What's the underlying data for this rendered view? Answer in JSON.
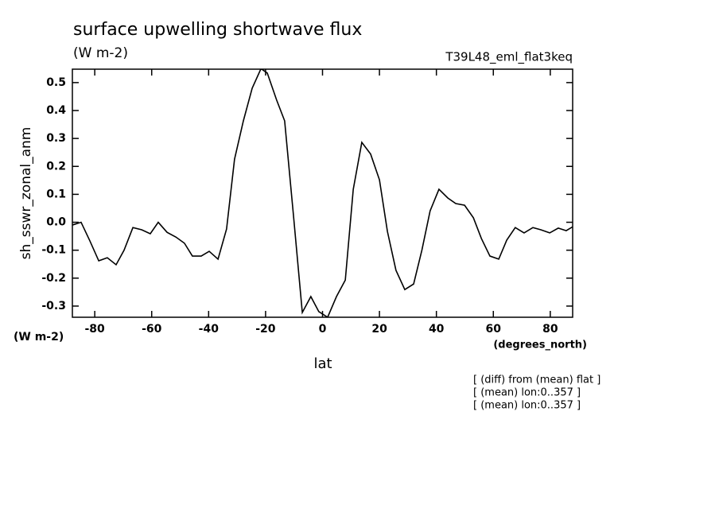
{
  "chart_data": {
    "type": "line",
    "title": "surface upwelling shortwave flux",
    "subtitle": "(W m-2)",
    "run_label": "T39L48_eml_flat3keq",
    "y_label": "sh_sswr_zonal_anm",
    "y_units": "(W m-2)",
    "x_label": "lat",
    "x_units": "(degrees_north)",
    "notes": [
      "[ (diff) from (mean) flat ]",
      "[ (mean) lon:0..357 ]",
      "[ (mean) lon:0..357 ]"
    ],
    "color": "#000000",
    "x": [
      -87.9,
      -84.8,
      -81.7,
      -78.6,
      -75.6,
      -72.5,
      -69.7,
      -66.6,
      -63.5,
      -60.5,
      -57.7,
      -54.6,
      -51.5,
      -48.5,
      -45.7,
      -42.6,
      -39.8,
      -36.7,
      -33.7,
      -30.9,
      -27.8,
      -24.7,
      -21.6,
      -19.4,
      -16.1,
      -13.3,
      -10.2,
      -7.1,
      -4.1,
      -1.3,
      1.8,
      4.9,
      8.0,
      10.8,
      13.8,
      16.9,
      20.0,
      22.8,
      25.8,
      28.9,
      32.0,
      34.9,
      37.8,
      40.9,
      44.0,
      46.8,
      49.9,
      53.0,
      55.8,
      58.8,
      61.9,
      64.7,
      67.7,
      70.8,
      73.9,
      76.7,
      79.8,
      82.8,
      85.6,
      87.9
    ],
    "values": [
      -0.01,
      0.0,
      -0.067,
      -0.138,
      -0.127,
      -0.152,
      -0.1,
      -0.019,
      -0.027,
      -0.041,
      0.0,
      -0.036,
      -0.053,
      -0.075,
      -0.121,
      -0.121,
      -0.104,
      -0.132,
      -0.024,
      0.226,
      0.363,
      0.48,
      0.55,
      0.534,
      0.437,
      0.363,
      0.024,
      -0.323,
      -0.266,
      -0.32,
      -0.34,
      -0.266,
      -0.207,
      0.118,
      0.286,
      0.244,
      0.152,
      -0.033,
      -0.172,
      -0.241,
      -0.221,
      -0.1,
      0.041,
      0.118,
      0.087,
      0.067,
      0.061,
      0.016,
      -0.058,
      -0.121,
      -0.132,
      -0.064,
      -0.019,
      -0.038,
      -0.019,
      -0.027,
      -0.038,
      -0.021,
      -0.03,
      -0.016
    ],
    "xlim": [
      -87.86,
      87.86
    ],
    "xticks": [
      -80,
      -60,
      -40,
      -20,
      0,
      20,
      40,
      60,
      80
    ],
    "ylim": [
      -0.34,
      0.548
    ],
    "yticks": [
      -0.3,
      -0.2,
      -0.1,
      {
        "value": 0,
        "label": "0.0"
      },
      0.1,
      0.2,
      0.3,
      0.4,
      0.5
    ]
  }
}
